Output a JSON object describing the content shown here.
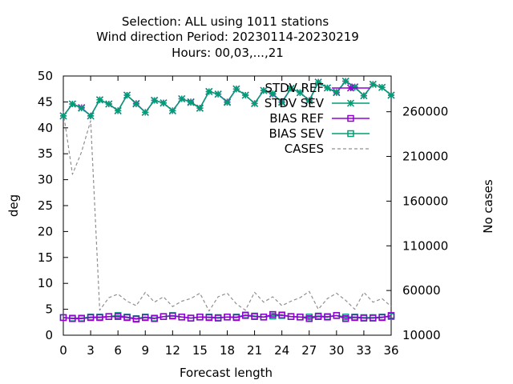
{
  "chart_data": {
    "type": "line",
    "title_lines": [
      "Selection: ALL using  1011 stations",
      "Wind direction   Period: 20230114-20230219",
      "Hours:  00,03,...,21"
    ],
    "xlabel": "Forecast length",
    "ylabel": "deg",
    "y2label": "No cases",
    "xlim": [
      0,
      36
    ],
    "ylim": [
      0,
      50
    ],
    "y2lim": [
      10000,
      300000
    ],
    "xticks": [
      0,
      3,
      6,
      9,
      12,
      15,
      18,
      21,
      24,
      27,
      30,
      33,
      36
    ],
    "yticks": [
      0,
      5,
      10,
      15,
      20,
      25,
      30,
      35,
      40,
      45,
      50
    ],
    "y2ticks": [
      10000,
      60000,
      110000,
      160000,
      210000,
      260000
    ],
    "grid": false,
    "legend_position": "top-right",
    "x": [
      0,
      1,
      2,
      3,
      4,
      5,
      6,
      7,
      8,
      9,
      10,
      11,
      12,
      13,
      14,
      15,
      16,
      17,
      18,
      19,
      20,
      21,
      22,
      23,
      24,
      25,
      26,
      27,
      28,
      29,
      30,
      31,
      32,
      33,
      34,
      35,
      36
    ],
    "series": [
      {
        "name": "STDV REF",
        "axis": "y1",
        "color": "#9400d3",
        "marker": "star",
        "dash": "solid",
        "values": [
          42.3,
          44.6,
          43.9,
          42.3,
          45.4,
          44.6,
          43.3,
          46.3,
          44.7,
          43.0,
          45.3,
          44.8,
          43.3,
          45.6,
          45.0,
          43.8,
          47.0,
          46.5,
          45.0,
          47.5,
          46.3,
          44.7,
          47.2,
          46.5,
          45.0,
          47.6,
          46.8,
          45.3,
          48.8,
          47.7,
          46.8,
          49.0,
          47.9,
          46.2,
          48.4,
          47.8,
          46.3
        ]
      },
      {
        "name": "STDV SEV",
        "axis": "y1",
        "color": "#009e73",
        "marker": "star",
        "dash": "solid",
        "values": [
          42.3,
          44.6,
          43.8,
          42.3,
          45.4,
          44.6,
          43.3,
          46.3,
          44.6,
          43.0,
          45.3,
          44.8,
          43.3,
          45.6,
          44.9,
          43.8,
          47.0,
          46.5,
          44.9,
          47.5,
          46.3,
          44.7,
          47.2,
          46.6,
          44.9,
          47.6,
          46.8,
          45.2,
          48.8,
          47.7,
          46.9,
          49.0,
          47.8,
          46.2,
          48.4,
          47.8,
          46.3
        ]
      },
      {
        "name": "BIAS REF",
        "axis": "y1",
        "color": "#9400d3",
        "marker": "square",
        "dash": "solid",
        "values": [
          3.4,
          3.2,
          3.2,
          3.4,
          3.4,
          3.6,
          3.6,
          3.4,
          3.1,
          3.4,
          3.2,
          3.6,
          3.7,
          3.5,
          3.3,
          3.5,
          3.4,
          3.3,
          3.5,
          3.4,
          3.8,
          3.6,
          3.5,
          4.0,
          3.9,
          3.6,
          3.5,
          3.2,
          3.6,
          3.5,
          3.8,
          3.2,
          3.4,
          3.3,
          3.3,
          3.4,
          3.8
        ]
      },
      {
        "name": "BIAS SEV",
        "axis": "y1",
        "color": "#009e73",
        "marker": "square",
        "dash": "solid",
        "values": [
          3.4,
          3.3,
          3.3,
          3.5,
          3.5,
          3.6,
          3.8,
          3.5,
          3.2,
          3.5,
          3.3,
          3.6,
          3.8,
          3.5,
          3.3,
          3.5,
          3.5,
          3.4,
          3.5,
          3.5,
          3.9,
          3.7,
          3.5,
          3.7,
          3.8,
          3.6,
          3.5,
          3.5,
          3.7,
          3.6,
          3.8,
          3.5,
          3.5,
          3.4,
          3.4,
          3.5,
          3.6
        ]
      },
      {
        "name": "CASES",
        "axis": "y2",
        "color": "#909090",
        "marker": "none",
        "dash": "4,3",
        "values": [
          260000,
          190000,
          215000,
          250000,
          38000,
          52000,
          56000,
          48000,
          43000,
          58000,
          47000,
          53000,
          42000,
          48000,
          51000,
          57000,
          37000,
          53000,
          57000,
          45000,
          38000,
          58000,
          47000,
          53000,
          43000,
          48000,
          52000,
          59000,
          39000,
          51000,
          57000,
          49000,
          39000,
          58000,
          47000,
          51000,
          42000
        ]
      }
    ]
  }
}
